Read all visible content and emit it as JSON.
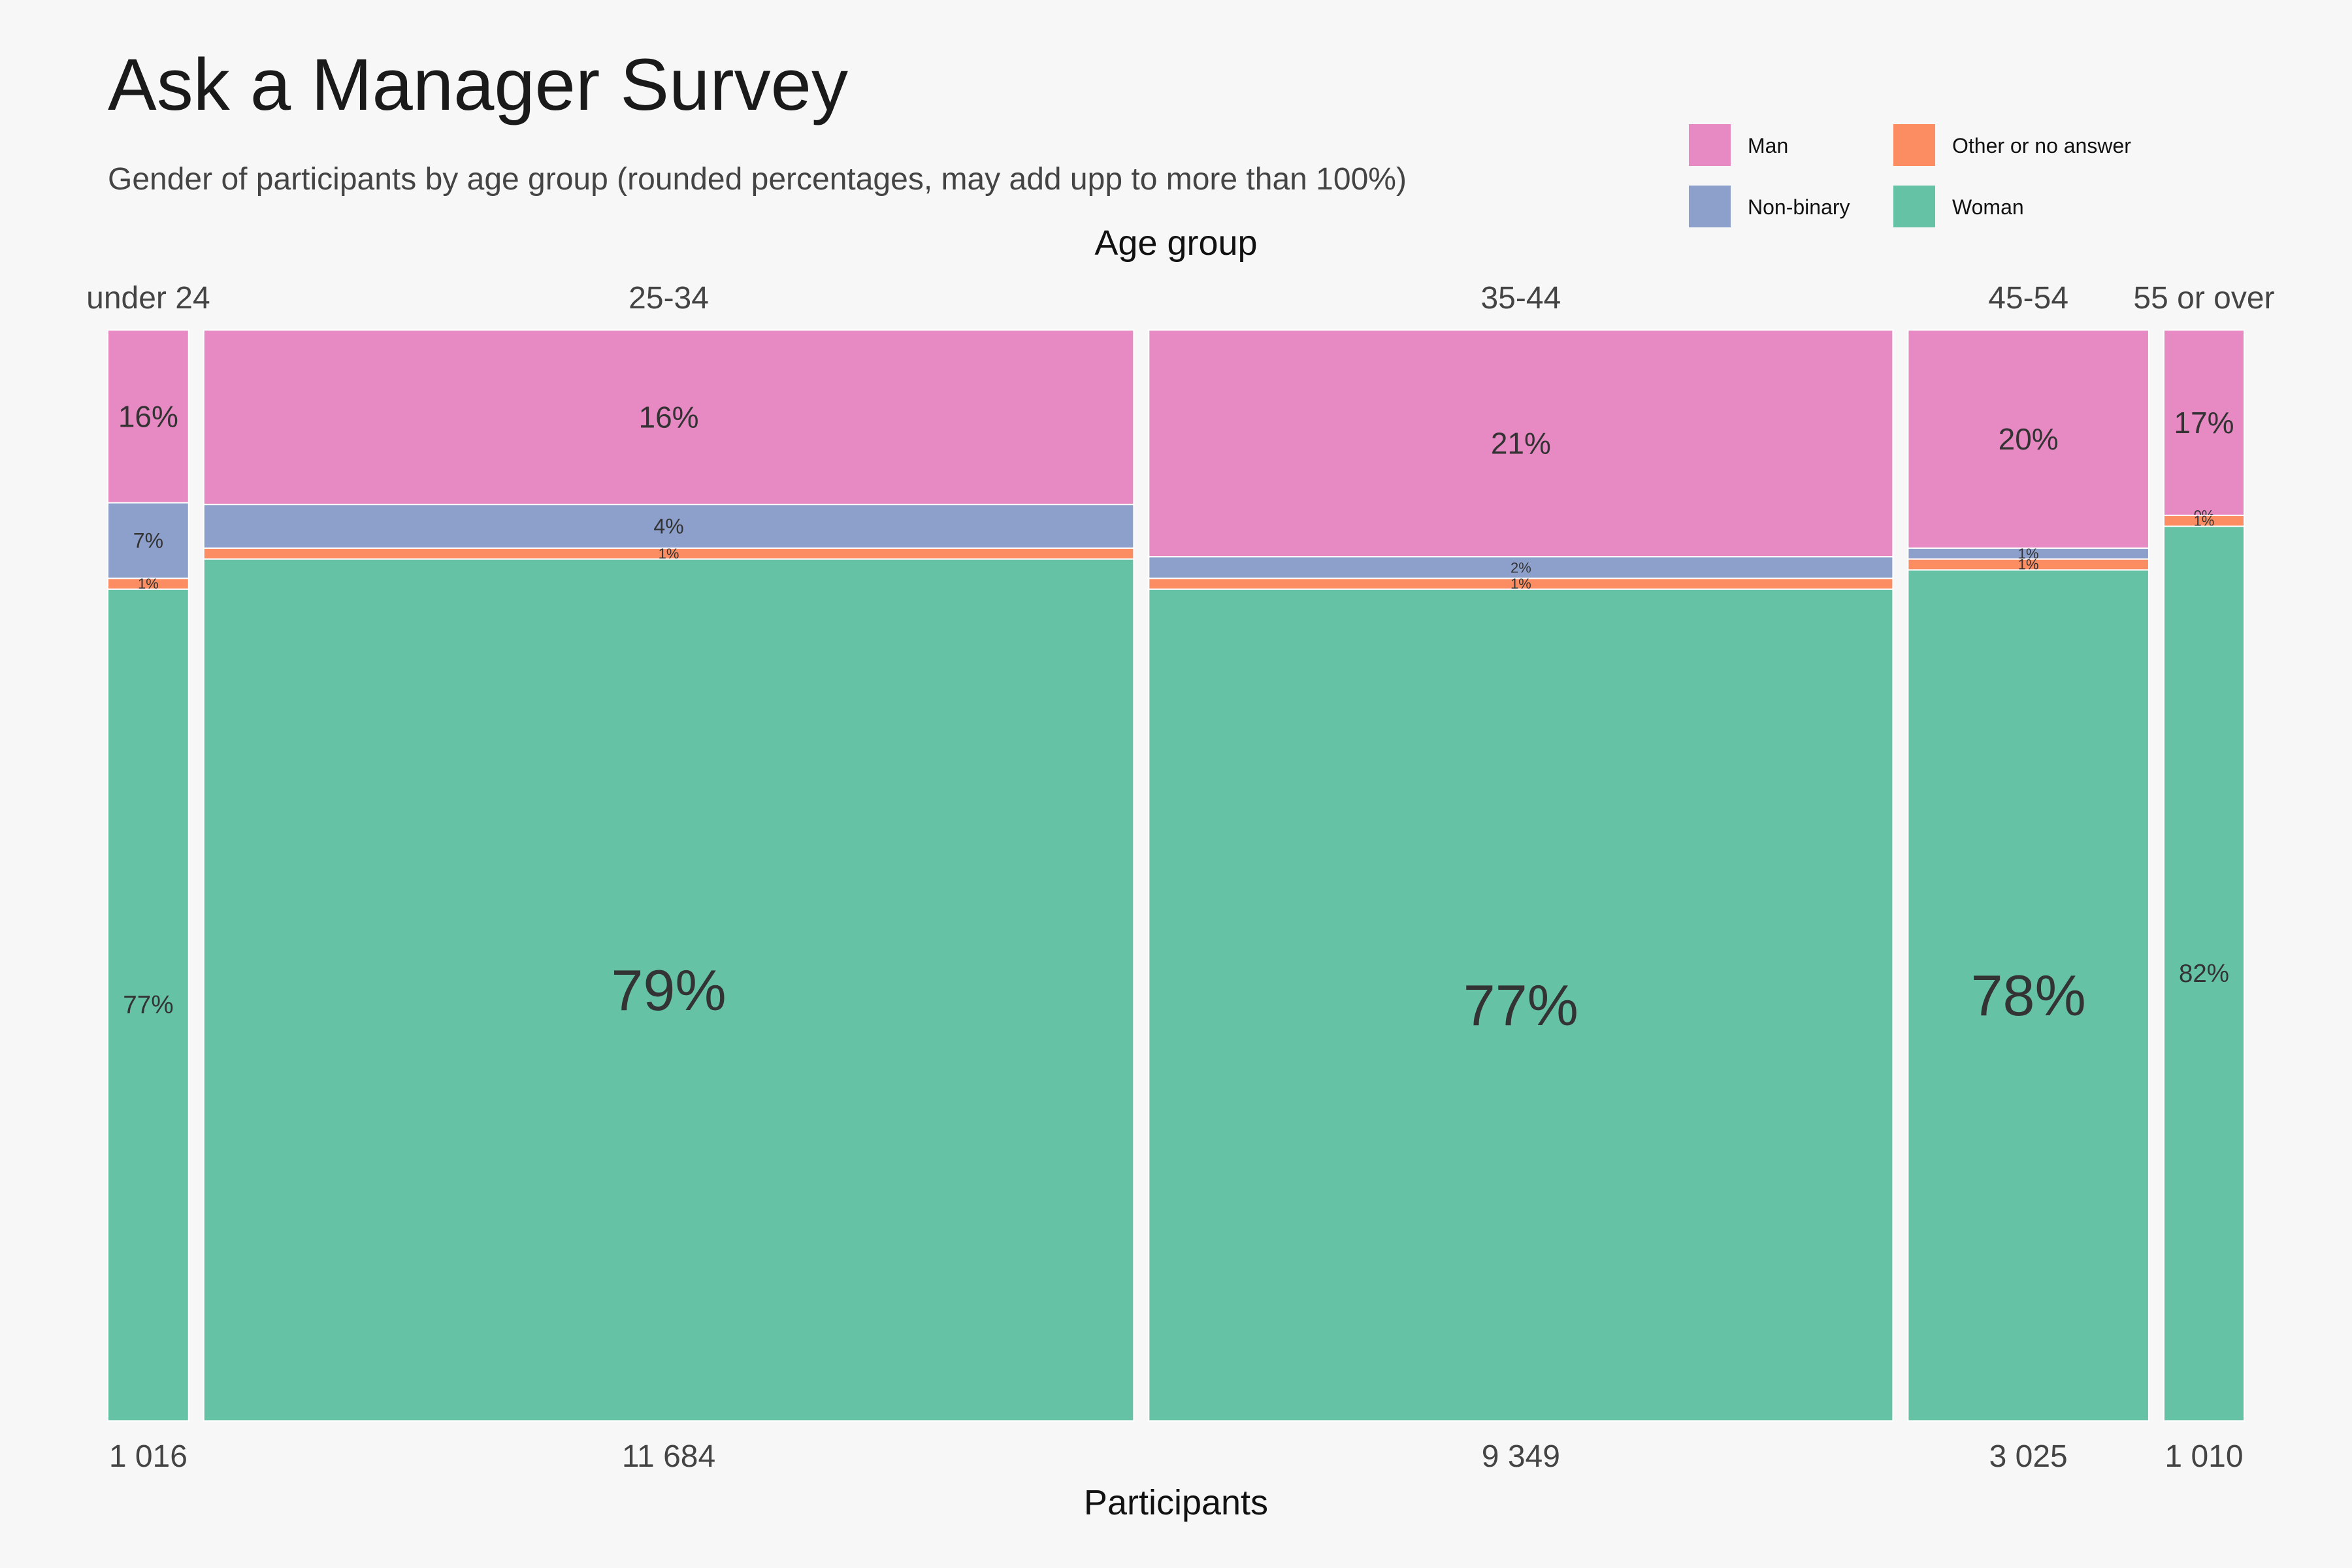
{
  "chart_data": {
    "type": "mosaic",
    "title": "Ask a Manager Survey",
    "subtitle": "Gender of participants by age group (rounded percentages, may add upp to more than 100%)",
    "top_axis_label": "Age group",
    "xlabel": "Participants",
    "legend_placement": "top-right",
    "legend": [
      {
        "name": "Man",
        "color": "#e78ac3"
      },
      {
        "name": "Other or no answer",
        "color": "#fc8d62"
      },
      {
        "name": "Non-binary",
        "color": "#8da0cb"
      },
      {
        "name": "Woman",
        "color": "#66c2a5"
      }
    ],
    "stack_order": [
      "Man",
      "Non-binary",
      "Other or no answer",
      "Woman"
    ],
    "groups": [
      {
        "label": "under 24",
        "count": 1016,
        "count_label": "1 016",
        "shares": {
          "Man": 16,
          "Non-binary": 7,
          "Other or no answer": 1,
          "Woman": 77
        },
        "labels": {
          "Man": "16%",
          "Non-binary": "7%",
          "Other or no answer": "1%",
          "Woman": "77%"
        }
      },
      {
        "label": "25-34",
        "count": 11684,
        "count_label": "11 684",
        "shares": {
          "Man": 16,
          "Non-binary": 4,
          "Other or no answer": 1,
          "Woman": 79
        },
        "labels": {
          "Man": "16%",
          "Non-binary": "4%",
          "Other or no answer": "1%",
          "Woman": "79%"
        }
      },
      {
        "label": "35-44",
        "count": 9349,
        "count_label": "9 349",
        "shares": {
          "Man": 21,
          "Non-binary": 2,
          "Other or no answer": 1,
          "Woman": 77
        },
        "labels": {
          "Man": "21%",
          "Non-binary": "2%",
          "Other or no answer": "1%",
          "Woman": "77%"
        }
      },
      {
        "label": "45-54",
        "count": 3025,
        "count_label": "3 025",
        "shares": {
          "Man": 20,
          "Non-binary": 1,
          "Other or no answer": 1,
          "Woman": 78
        },
        "labels": {
          "Man": "20%",
          "Non-binary": "1%",
          "Other or no answer": "1%",
          "Woman": "78%"
        }
      },
      {
        "label": "55 or over",
        "count": 1010,
        "count_label": "1 010",
        "shares": {
          "Man": 17,
          "Non-binary": 0,
          "Other or no answer": 1,
          "Woman": 82
        },
        "labels": {
          "Man": "17%",
          "Non-binary": "0%",
          "Other or no answer": "1%",
          "Woman": "82%"
        }
      }
    ]
  }
}
